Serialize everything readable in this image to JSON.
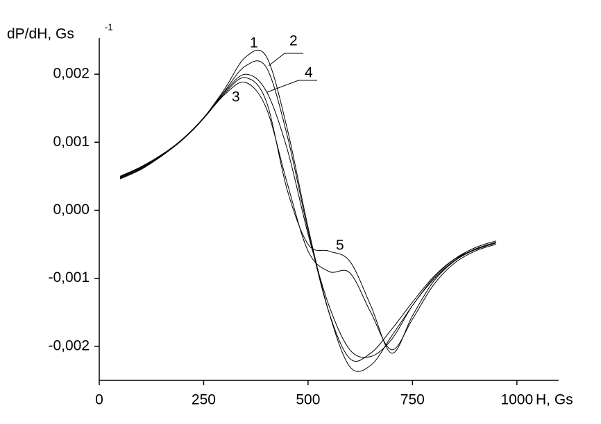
{
  "chart_data": {
    "type": "line",
    "y_label": "dP/dH, Gs",
    "y_label_sup": "-1",
    "x_label": "H, Gs",
    "x": [
      50,
      100,
      150,
      200,
      250,
      300,
      350,
      400,
      450,
      500,
      550,
      600,
      650,
      700,
      750,
      800,
      850,
      900,
      950
    ],
    "series": [
      {
        "name": "1",
        "color": "#000000",
        "values": [
          0.0005,
          0.00064,
          0.00082,
          0.00105,
          0.00136,
          0.00178,
          0.00225,
          0.00226,
          0.0012,
          -0.00025,
          -0.0015,
          -0.0023,
          -0.00228,
          -0.00185,
          -0.0014,
          -0.001,
          -0.00072,
          -0.00055,
          -0.00045
        ]
      },
      {
        "name": "2",
        "color": "#000000",
        "values": [
          0.00049,
          0.00063,
          0.00081,
          0.00104,
          0.00135,
          0.00175,
          0.00212,
          0.0021,
          0.0011,
          -0.0003,
          -0.0015,
          -0.00218,
          -0.0021,
          -0.00175,
          -0.00135,
          -0.00098,
          -0.00072,
          -0.00058,
          -0.00048
        ]
      },
      {
        "name": "3",
        "color": "#000000",
        "values": [
          0.00046,
          0.0006,
          0.0008,
          0.00104,
          0.00135,
          0.0017,
          0.00188,
          0.0015,
          0.0004,
          -0.0006,
          -0.0009,
          -0.00092,
          -0.0015,
          -0.00205,
          -0.0016,
          -0.0011,
          -0.00078,
          -0.0006,
          -0.0005
        ]
      },
      {
        "name": "4",
        "color": "#000000",
        "values": [
          0.00048,
          0.00062,
          0.00081,
          0.00105,
          0.00136,
          0.00174,
          0.002,
          0.00175,
          0.0009,
          -0.00035,
          -0.0014,
          -0.00205,
          -0.00215,
          -0.0019,
          -0.0014,
          -0.00102,
          -0.00074,
          -0.00057,
          -0.00047
        ]
      },
      {
        "name": "5",
        "color": "#000000",
        "values": [
          0.00047,
          0.00061,
          0.0008,
          0.00104,
          0.00135,
          0.00172,
          0.00195,
          0.0016,
          0.0003,
          -0.0005,
          -0.0006,
          -0.00075,
          -0.0014,
          -0.0021,
          -0.00155,
          -0.00105,
          -0.00075,
          -0.00058,
          -0.00048
        ]
      }
    ],
    "xlim": [
      0,
      1100
    ],
    "xticks": [
      0,
      250,
      500,
      750,
      1000
    ],
    "ylim": [
      -0.0025,
      0.0025
    ],
    "yticks": [
      {
        "value": -0.002,
        "label": "-0,002"
      },
      {
        "value": -0.001,
        "label": "-0,001"
      },
      {
        "value": 0,
        "label": "0,000"
      },
      {
        "value": 0.001,
        "label": "0,001"
      },
      {
        "value": 0.002,
        "label": "0,002"
      }
    ],
    "grid": false
  }
}
